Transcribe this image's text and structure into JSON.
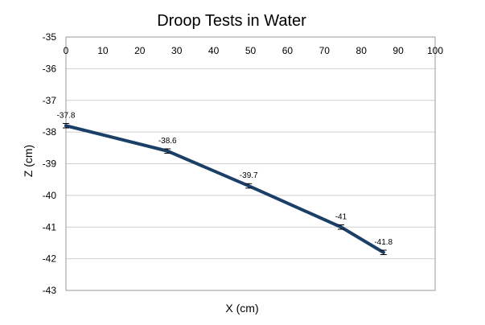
{
  "chart_data": {
    "type": "line",
    "title": "Droop Tests in Water",
    "xlabel": "X (cm)",
    "ylabel": "Z (cm)",
    "xlim": [
      0,
      100
    ],
    "ylim": [
      -43,
      -35
    ],
    "x_ticks": [
      "0",
      "10",
      "20",
      "30",
      "40",
      "50",
      "60",
      "70",
      "80",
      "90",
      "100"
    ],
    "y_ticks": [
      "-35",
      "-36",
      "-37",
      "-38",
      "-39",
      "-40",
      "-41",
      "-42",
      "-43"
    ],
    "x_axis_position": "top",
    "grid": true,
    "legend": "none",
    "series": [
      {
        "x": [
          0,
          27.5,
          49.5,
          74.5,
          86
        ],
        "y": [
          -37.8,
          -38.6,
          -39.7,
          -41.0,
          -41.8
        ],
        "error": [
          0.07,
          0.07,
          0.07,
          0.07,
          0.07
        ],
        "labels": [
          "-37.8",
          "-38.6",
          "-39.7",
          "-41",
          "-41.8"
        ],
        "color": "#1b3f66"
      }
    ]
  }
}
